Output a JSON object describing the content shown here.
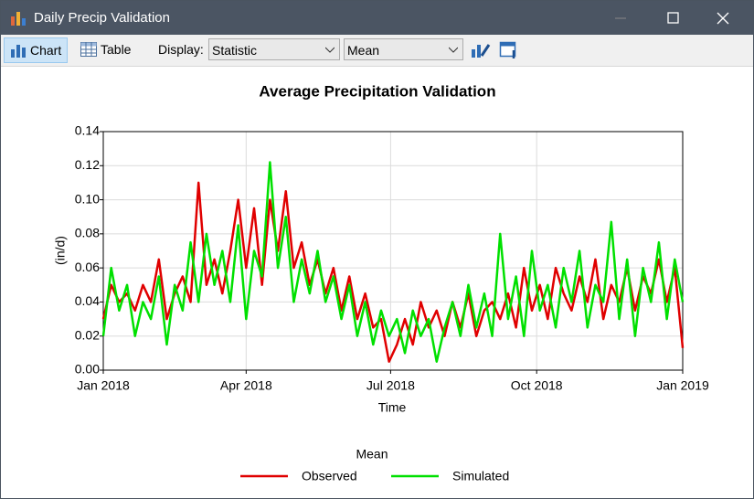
{
  "window": {
    "title": "Daily Precip Validation"
  },
  "toolbar": {
    "chart": "Chart",
    "table": "Table",
    "display_label": "Display:",
    "statistic": "Statistic",
    "mean": "Mean"
  },
  "chart_data": {
    "type": "line",
    "title": "Average Precipitation Validation",
    "x_label": "Time",
    "y_label": "(in/d)",
    "legend_title": "Mean",
    "legend": "bottom",
    "grid": true,
    "x": [
      0,
      5,
      10,
      15,
      20,
      25,
      30,
      35,
      40,
      45,
      50,
      55,
      60,
      65,
      70,
      75,
      80,
      85,
      90,
      95,
      100,
      105,
      110,
      115,
      120,
      125,
      130,
      135,
      140,
      145,
      150,
      155,
      160,
      165,
      170,
      175,
      180,
      185,
      190,
      195,
      200,
      205,
      210,
      215,
      220,
      225,
      230,
      235,
      240,
      245,
      250,
      255,
      260,
      265,
      270,
      275,
      280,
      285,
      290,
      295,
      300,
      305,
      310,
      315,
      320,
      325,
      330,
      335,
      340,
      345,
      350,
      355,
      360,
      365
    ],
    "xlim": [
      0,
      365
    ],
    "xticks": [
      {
        "value": 0,
        "label": "Jan 2018"
      },
      {
        "value": 90,
        "label": "Apr 2018"
      },
      {
        "value": 181,
        "label": "Jul 2018"
      },
      {
        "value": 273,
        "label": "Oct 2018"
      },
      {
        "value": 365,
        "label": "Jan 2019"
      }
    ],
    "ylim": [
      0,
      0.14
    ],
    "yticks": [
      {
        "value": 0,
        "label": "0.00"
      },
      0.02,
      0.04,
      0.06,
      0.08,
      {
        "value": 0.1,
        "label": "0.10"
      },
      0.12,
      0.14
    ],
    "series": [
      {
        "name": "Observed",
        "color": "#e00000",
        "values": [
          0.03,
          0.05,
          0.04,
          0.045,
          0.035,
          0.05,
          0.04,
          0.065,
          0.03,
          0.045,
          0.055,
          0.04,
          0.11,
          0.05,
          0.065,
          0.045,
          0.07,
          0.1,
          0.06,
          0.095,
          0.05,
          0.1,
          0.07,
          0.105,
          0.06,
          0.075,
          0.05,
          0.065,
          0.045,
          0.06,
          0.035,
          0.055,
          0.03,
          0.045,
          0.025,
          0.03,
          0.005,
          0.015,
          0.03,
          0.015,
          0.04,
          0.025,
          0.035,
          0.02,
          0.04,
          0.025,
          0.045,
          0.02,
          0.035,
          0.04,
          0.03,
          0.045,
          0.025,
          0.06,
          0.035,
          0.05,
          0.03,
          0.06,
          0.045,
          0.035,
          0.055,
          0.04,
          0.065,
          0.03,
          0.05,
          0.04,
          0.06,
          0.035,
          0.055,
          0.045,
          0.065,
          0.04,
          0.06,
          0.013
        ]
      },
      {
        "name": "Simulated",
        "color": "#00e000",
        "values": [
          0.02,
          0.06,
          0.035,
          0.05,
          0.02,
          0.04,
          0.03,
          0.055,
          0.015,
          0.05,
          0.035,
          0.075,
          0.04,
          0.08,
          0.05,
          0.07,
          0.04,
          0.085,
          0.03,
          0.07,
          0.055,
          0.122,
          0.06,
          0.09,
          0.04,
          0.065,
          0.045,
          0.07,
          0.04,
          0.055,
          0.03,
          0.05,
          0.02,
          0.04,
          0.015,
          0.035,
          0.02,
          0.03,
          0.01,
          0.035,
          0.02,
          0.03,
          0.005,
          0.025,
          0.04,
          0.02,
          0.05,
          0.025,
          0.045,
          0.02,
          0.08,
          0.03,
          0.055,
          0.02,
          0.07,
          0.035,
          0.05,
          0.025,
          0.06,
          0.04,
          0.07,
          0.025,
          0.05,
          0.04,
          0.087,
          0.03,
          0.065,
          0.02,
          0.06,
          0.04,
          0.075,
          0.03,
          0.065,
          0.04
        ]
      }
    ]
  }
}
